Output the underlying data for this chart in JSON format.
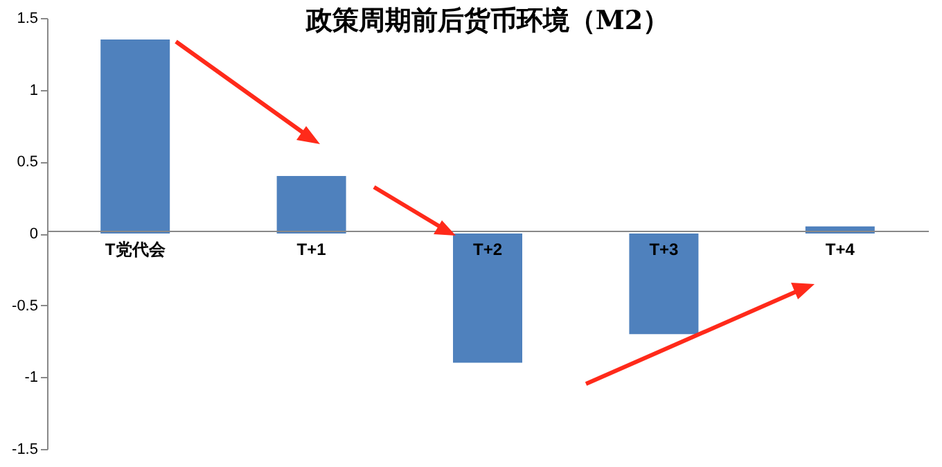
{
  "chart_data": {
    "type": "bar",
    "title": "政策周期前后货币环境（M2）",
    "categories": [
      "T党代会",
      "T+1",
      "T+2",
      "T+3",
      "T+4"
    ],
    "values": [
      1.35,
      0.4,
      -0.9,
      -0.7,
      0.05
    ],
    "color": "#4f81bd",
    "ylim": [
      -1.5,
      1.5
    ],
    "yticks": [
      -1.5,
      -1,
      -0.5,
      0,
      0.5,
      1,
      1.5
    ],
    "grid": false
  }
}
